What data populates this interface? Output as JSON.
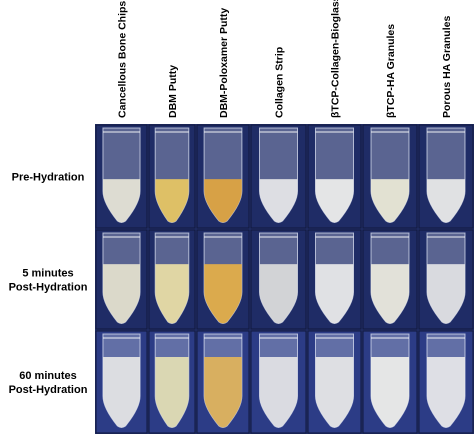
{
  "columns": [
    "Cancellous Bone Chips",
    "DBM Putty",
    "DBM-Poloxamer Putty",
    "Collagen Strip",
    "βTCP-Collagen-Bioglass",
    "βTCP-HA Granules",
    "Porous HA Granules"
  ],
  "rows": [
    {
      "label": [
        "Pre-Hydration"
      ]
    },
    {
      "label": [
        "5 minutes",
        "Post-Hydration"
      ]
    },
    {
      "label": [
        "60 minutes",
        "Post-Hydration"
      ]
    }
  ]
}
